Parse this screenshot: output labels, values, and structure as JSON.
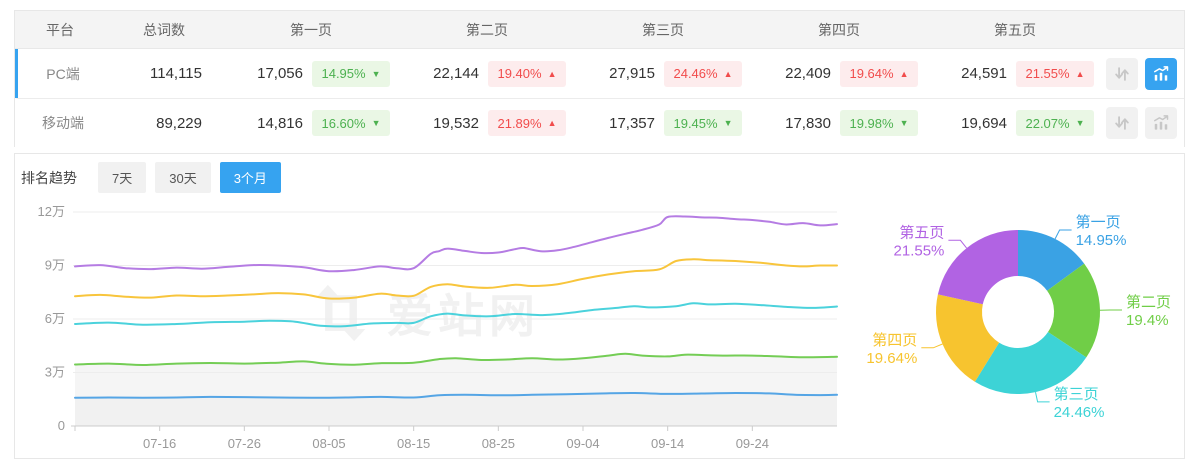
{
  "table": {
    "columns": [
      "平台",
      "总词数",
      "第一页",
      "第二页",
      "第三页",
      "第四页",
      "第五页"
    ],
    "rows": [
      {
        "platform": "PC端",
        "total": "114,115",
        "selected": "true",
        "trend_active": "true",
        "pages": [
          {
            "value": "17,056",
            "pct": "14.95%",
            "dir": "down"
          },
          {
            "value": "22,144",
            "pct": "19.40%",
            "dir": "up"
          },
          {
            "value": "27,915",
            "pct": "24.46%",
            "dir": "up"
          },
          {
            "value": "22,409",
            "pct": "19.64%",
            "dir": "up"
          },
          {
            "value": "24,591",
            "pct": "21.55%",
            "dir": "up"
          }
        ]
      },
      {
        "platform": "移动端",
        "total": "89,229",
        "selected": "false",
        "trend_active": "false",
        "pages": [
          {
            "value": "14,816",
            "pct": "16.60%",
            "dir": "down"
          },
          {
            "value": "19,532",
            "pct": "21.89%",
            "dir": "up"
          },
          {
            "value": "17,357",
            "pct": "19.45%",
            "dir": "down"
          },
          {
            "value": "17,830",
            "pct": "19.98%",
            "dir": "down"
          },
          {
            "value": "19,694",
            "pct": "22.07%",
            "dir": "down"
          }
        ]
      }
    ]
  },
  "trend": {
    "title": "排名趋势",
    "tabs": [
      {
        "label": "7天",
        "active": "false"
      },
      {
        "label": "30天",
        "active": "false"
      },
      {
        "label": "3个月",
        "active": "true"
      }
    ]
  },
  "watermark": {
    "text": "爱站网"
  },
  "colors": {
    "accent_blue": "#36a3f0",
    "badge_up_red": "#f14c4c",
    "badge_down_green": "#4db150"
  },
  "chart_data": [
    {
      "type": "line",
      "title": "排名趋势",
      "legend": false,
      "grid": true,
      "x_range": [
        0,
        90
      ],
      "x_ticks": [
        {
          "d": 10,
          "label": "07-16"
        },
        {
          "d": 20,
          "label": "07-26"
        },
        {
          "d": 30,
          "label": "08-05"
        },
        {
          "d": 40,
          "label": "08-15"
        },
        {
          "d": 50,
          "label": "08-25"
        },
        {
          "d": 60,
          "label": "09-04"
        },
        {
          "d": 70,
          "label": "09-14"
        },
        {
          "d": 80,
          "label": "09-24"
        }
      ],
      "ylim": [
        0,
        12
      ],
      "y_unit": "万",
      "y_ticks": [
        {
          "v": 0,
          "label": "0"
        },
        {
          "v": 3,
          "label": "3万"
        },
        {
          "v": 6,
          "label": "6万"
        },
        {
          "v": 9,
          "label": "9万"
        },
        {
          "v": 12,
          "label": "12万"
        }
      ],
      "series": [
        {
          "name": "s2-green",
          "color": "#74cd55",
          "area_fill": "#f5f5f5",
          "points": [
            [
              0,
              3.45
            ],
            [
              4,
              3.5
            ],
            [
              8,
              3.42
            ],
            [
              12,
              3.5
            ],
            [
              16,
              3.53
            ],
            [
              20,
              3.5
            ],
            [
              24,
              3.55
            ],
            [
              27,
              3.62
            ],
            [
              30,
              3.48
            ],
            [
              33,
              3.44
            ],
            [
              36,
              3.52
            ],
            [
              40,
              3.55
            ],
            [
              43,
              3.75
            ],
            [
              45,
              3.8
            ],
            [
              48,
              3.7
            ],
            [
              51,
              3.73
            ],
            [
              54,
              3.8
            ],
            [
              57,
              3.73
            ],
            [
              60,
              3.8
            ],
            [
              63,
              3.95
            ],
            [
              65,
              4.05
            ],
            [
              67,
              3.95
            ],
            [
              70,
              3.9
            ],
            [
              72,
              4.0
            ],
            [
              74,
              3.98
            ],
            [
              77,
              3.95
            ],
            [
              80,
              3.95
            ],
            [
              83,
              3.9
            ],
            [
              86,
              3.85
            ],
            [
              90,
              3.88
            ]
          ]
        },
        {
          "name": "s1-blue",
          "color": "#55a5e5",
          "area_fill": "#f1f1f1",
          "points": [
            [
              0,
              1.58
            ],
            [
              4,
              1.6
            ],
            [
              8,
              1.58
            ],
            [
              12,
              1.6
            ],
            [
              16,
              1.63
            ],
            [
              20,
              1.62
            ],
            [
              24,
              1.6
            ],
            [
              28,
              1.58
            ],
            [
              32,
              1.6
            ],
            [
              36,
              1.63
            ],
            [
              40,
              1.6
            ],
            [
              43,
              1.72
            ],
            [
              46,
              1.75
            ],
            [
              50,
              1.72
            ],
            [
              54,
              1.75
            ],
            [
              58,
              1.78
            ],
            [
              62,
              1.82
            ],
            [
              66,
              1.85
            ],
            [
              70,
              1.8
            ],
            [
              74,
              1.82
            ],
            [
              78,
              1.85
            ],
            [
              82,
              1.83
            ],
            [
              85,
              1.75
            ],
            [
              88,
              1.73
            ],
            [
              90,
              1.75
            ]
          ]
        },
        {
          "name": "s3-cyan",
          "color": "#4bd2dc",
          "points": [
            [
              0,
              5.72
            ],
            [
              4,
              5.8
            ],
            [
              8,
              5.68
            ],
            [
              12,
              5.72
            ],
            [
              16,
              5.82
            ],
            [
              20,
              5.85
            ],
            [
              23,
              5.9
            ],
            [
              26,
              5.85
            ],
            [
              29,
              5.62
            ],
            [
              32,
              5.6
            ],
            [
              35,
              5.75
            ],
            [
              38,
              5.78
            ],
            [
              40,
              5.78
            ],
            [
              42,
              6.15
            ],
            [
              44,
              6.3
            ],
            [
              46,
              6.2
            ],
            [
              49,
              6.15
            ],
            [
              52,
              6.28
            ],
            [
              55,
              6.22
            ],
            [
              58,
              6.32
            ],
            [
              61,
              6.5
            ],
            [
              64,
              6.62
            ],
            [
              66,
              6.72
            ],
            [
              68,
              6.65
            ],
            [
              71,
              6.72
            ],
            [
              73,
              6.88
            ],
            [
              75,
              6.82
            ],
            [
              78,
              6.85
            ],
            [
              81,
              6.78
            ],
            [
              84,
              6.68
            ],
            [
              87,
              6.62
            ],
            [
              90,
              6.7
            ]
          ]
        },
        {
          "name": "s4-yellow",
          "color": "#f8c53c",
          "points": [
            [
              0,
              7.28
            ],
            [
              3,
              7.35
            ],
            [
              6,
              7.25
            ],
            [
              9,
              7.2
            ],
            [
              12,
              7.32
            ],
            [
              15,
              7.28
            ],
            [
              18,
              7.32
            ],
            [
              21,
              7.38
            ],
            [
              24,
              7.45
            ],
            [
              27,
              7.38
            ],
            [
              30,
              7.15
            ],
            [
              33,
              7.2
            ],
            [
              36,
              7.42
            ],
            [
              38,
              7.32
            ],
            [
              40,
              7.3
            ],
            [
              42,
              7.8
            ],
            [
              44,
              7.95
            ],
            [
              46,
              7.82
            ],
            [
              49,
              7.75
            ],
            [
              52,
              7.92
            ],
            [
              54,
              7.85
            ],
            [
              57,
              7.95
            ],
            [
              60,
              8.25
            ],
            [
              63,
              8.5
            ],
            [
              66,
              8.68
            ],
            [
              69,
              8.78
            ],
            [
              71,
              9.25
            ],
            [
              73,
              9.35
            ],
            [
              75,
              9.3
            ],
            [
              78,
              9.25
            ],
            [
              81,
              9.15
            ],
            [
              84,
              9.0
            ],
            [
              86,
              8.95
            ],
            [
              88,
              9.0
            ],
            [
              90,
              9.0
            ]
          ]
        },
        {
          "name": "s5-purple",
          "color": "#b57ce3",
          "points": [
            [
              0,
              8.95
            ],
            [
              3,
              9.02
            ],
            [
              6,
              8.85
            ],
            [
              9,
              8.8
            ],
            [
              12,
              8.88
            ],
            [
              15,
              8.82
            ],
            [
              18,
              8.92
            ],
            [
              21,
              9.02
            ],
            [
              24,
              9.0
            ],
            [
              27,
              8.9
            ],
            [
              30,
              8.68
            ],
            [
              33,
              8.75
            ],
            [
              36,
              8.95
            ],
            [
              38,
              8.85
            ],
            [
              40,
              8.85
            ],
            [
              42,
              9.65
            ],
            [
              43,
              9.8
            ],
            [
              44,
              9.95
            ],
            [
              46,
              9.82
            ],
            [
              48,
              9.7
            ],
            [
              50,
              9.73
            ],
            [
              52,
              9.92
            ],
            [
              53,
              9.98
            ],
            [
              55,
              9.8
            ],
            [
              57,
              9.85
            ],
            [
              59,
              10.05
            ],
            [
              61,
              10.3
            ],
            [
              63,
              10.55
            ],
            [
              65,
              10.78
            ],
            [
              67,
              11.0
            ],
            [
              69,
              11.3
            ],
            [
              70,
              11.72
            ],
            [
              72,
              11.75
            ],
            [
              74,
              11.7
            ],
            [
              76,
              11.68
            ],
            [
              78,
              11.6
            ],
            [
              80,
              11.55
            ],
            [
              82,
              11.45
            ],
            [
              84,
              11.3
            ],
            [
              86,
              11.38
            ],
            [
              88,
              11.25
            ],
            [
              90,
              11.32
            ]
          ]
        }
      ]
    },
    {
      "type": "pie",
      "subtype": "donut",
      "slices": [
        {
          "label": "第一页",
          "value": 14.95,
          "display": "14.95%",
          "color": "#3aa2e4"
        },
        {
          "label": "第二页",
          "value": 19.4,
          "display": "19.4%",
          "color": "#70ce47"
        },
        {
          "label": "第三页",
          "value": 24.46,
          "display": "24.46%",
          "color": "#3dd3d6"
        },
        {
          "label": "第四页",
          "value": 19.64,
          "display": "19.64%",
          "color": "#f7c42f"
        },
        {
          "label": "第五页",
          "value": 21.55,
          "display": "21.55%",
          "color": "#b163e3"
        }
      ]
    }
  ]
}
